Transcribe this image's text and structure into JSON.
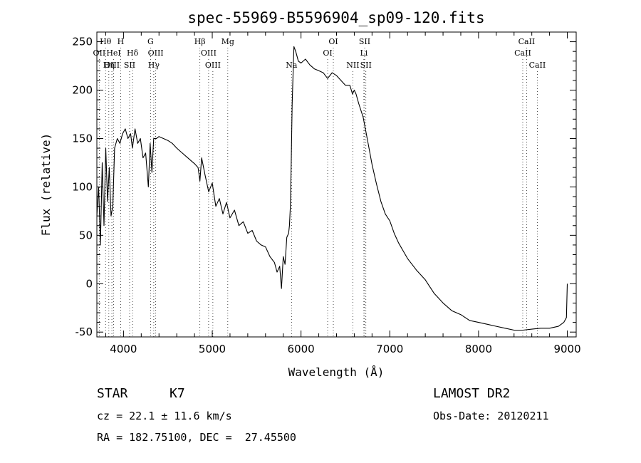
{
  "chart_data": {
    "type": "line",
    "title": "spec-55969-B5596904_sp09-120.fits",
    "xlabel": "Wavelength (Å)",
    "ylabel": "Flux (relative)",
    "xlim": [
      3700,
      9100
    ],
    "ylim": [
      -55,
      260
    ],
    "xticks": [
      4000,
      5000,
      6000,
      7000,
      8000,
      9000
    ],
    "yticks": [
      -50,
      0,
      50,
      100,
      150,
      200,
      250
    ],
    "grid": false,
    "series": [
      {
        "color": "#000000",
        "x": [
          3700,
          3720,
          3740,
          3760,
          3780,
          3800,
          3820,
          3840,
          3860,
          3880,
          3900,
          3930,
          3960,
          3990,
          4020,
          4050,
          4080,
          4100,
          4130,
          4160,
          4190,
          4220,
          4250,
          4280,
          4300,
          4320,
          4340,
          4370,
          4400,
          4450,
          4500,
          4550,
          4600,
          4650,
          4700,
          4750,
          4800,
          4840,
          4861,
          4880,
          4920,
          4960,
          5000,
          5040,
          5080,
          5120,
          5160,
          5200,
          5250,
          5300,
          5350,
          5400,
          5450,
          5500,
          5550,
          5600,
          5650,
          5700,
          5730,
          5760,
          5780,
          5800,
          5820,
          5840,
          5860,
          5870,
          5880,
          5890,
          5900,
          5910,
          5920,
          5940,
          5970,
          6000,
          6050,
          6100,
          6150,
          6200,
          6250,
          6300,
          6350,
          6400,
          6450,
          6500,
          6550,
          6580,
          6600,
          6620,
          6650,
          6700,
          6750,
          6800,
          6850,
          6900,
          6950,
          7000,
          7050,
          7100,
          7150,
          7200,
          7300,
          7400,
          7500,
          7600,
          7700,
          7800,
          7900,
          8000,
          8100,
          8200,
          8300,
          8400,
          8500,
          8600,
          8700,
          8800,
          8900,
          8960,
          8990,
          9000
        ],
        "values": [
          70,
          100,
          40,
          125,
          60,
          140,
          85,
          120,
          70,
          80,
          140,
          150,
          145,
          155,
          160,
          150,
          155,
          140,
          160,
          145,
          150,
          130,
          135,
          100,
          145,
          115,
          150,
          150,
          152,
          150,
          148,
          145,
          140,
          136,
          132,
          128,
          124,
          120,
          106,
          130,
          112,
          95,
          104,
          80,
          88,
          72,
          84,
          68,
          76,
          60,
          64,
          52,
          55,
          44,
          40,
          38,
          28,
          22,
          12,
          18,
          -5,
          28,
          20,
          48,
          52,
          60,
          80,
          125,
          185,
          215,
          245,
          240,
          230,
          228,
          232,
          226,
          222,
          220,
          218,
          212,
          218,
          215,
          210,
          205,
          205,
          196,
          200,
          196,
          186,
          172,
          148,
          123,
          103,
          85,
          72,
          65,
          52,
          42,
          34,
          26,
          14,
          4,
          -10,
          -20,
          -28,
          -32,
          -38,
          -40,
          -42,
          -44,
          -46,
          -48,
          -48,
          -47,
          -46,
          -46,
          -44,
          -40,
          -35,
          0
        ]
      }
    ],
    "lines": [
      {
        "label": "Hθ",
        "x": 3798,
        "row": 0
      },
      {
        "label": "OII",
        "x": 3727,
        "row": 1
      },
      {
        "label": "OIII",
        "x": 3869,
        "row": 2
      },
      {
        "label": "H",
        "x": 3968,
        "row": 0
      },
      {
        "label": "HeI",
        "x": 3889,
        "row": 1
      },
      {
        "label": "Hη",
        "x": 3835,
        "row": 2
      },
      {
        "label": "Hδ",
        "x": 4102,
        "row": 1
      },
      {
        "label": "SII",
        "x": 4069,
        "row": 2
      },
      {
        "label": "G",
        "x": 4305,
        "row": 0
      },
      {
        "label": "OIII",
        "x": 4363,
        "row": 1
      },
      {
        "label": "Hγ",
        "x": 4341,
        "row": 2
      },
      {
        "label": "Hβ",
        "x": 4861,
        "row": 0
      },
      {
        "label": "OIII",
        "x": 4959,
        "row": 1
      },
      {
        "label": "OIII",
        "x": 5007,
        "row": 2
      },
      {
        "label": "Mg",
        "x": 5175,
        "row": 0
      },
      {
        "label": "Na",
        "x": 5893,
        "row": 2
      },
      {
        "label": "OI",
        "x": 6300,
        "row": 1
      },
      {
        "label": "OI",
        "x": 6364,
        "row": 0
      },
      {
        "label": "NII",
        "x": 6584,
        "row": 2
      },
      {
        "label": "SII",
        "x": 6717,
        "row": 0
      },
      {
        "label": "Li",
        "x": 6708,
        "row": 1
      },
      {
        "label": "SII",
        "x": 6731,
        "row": 2
      },
      {
        "label": "CaII",
        "x": 8498,
        "row": 1
      },
      {
        "label": "CaII",
        "x": 8542,
        "row": 0
      },
      {
        "label": "CaII",
        "x": 8662,
        "row": 2
      }
    ]
  },
  "info": {
    "class": "STAR",
    "subclass": "K7",
    "survey": "LAMOST DR2",
    "cz": "cz = 22.1 ± 11.6 km/s",
    "obsdate": "Obs-Date: 20120211",
    "radec": "RA = 182.75100, DEC =  27.45500"
  }
}
